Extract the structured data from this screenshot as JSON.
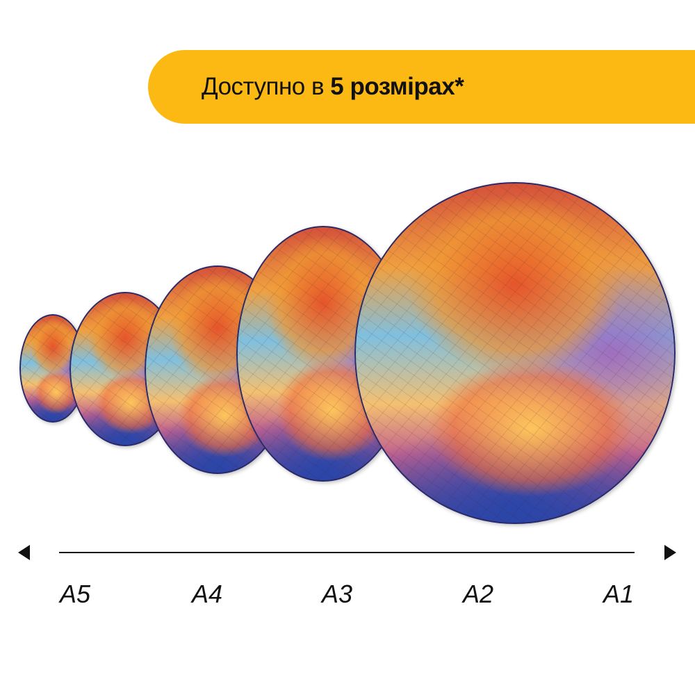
{
  "banner": {
    "text_prefix": "Доступно в ",
    "text_bold": "5 розмірах*",
    "color": "#FDB913"
  },
  "puzzles": [
    {
      "size": "A5"
    },
    {
      "size": "A4"
    },
    {
      "size": "A3"
    },
    {
      "size": "A2"
    },
    {
      "size": "A1"
    }
  ],
  "scale": {
    "labels": [
      "A5",
      "A4",
      "A3",
      "A2",
      "A1"
    ],
    "left_arrow_icon": "triangle-left-icon",
    "right_arrow_icon": "triangle-right-icon"
  }
}
